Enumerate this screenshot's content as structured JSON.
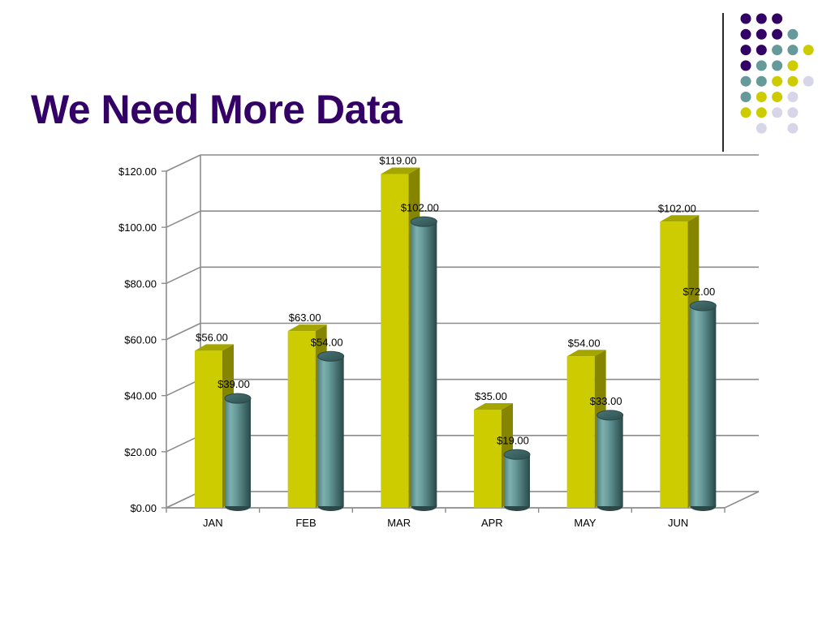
{
  "slide": {
    "title": "We Need More Data"
  },
  "theme": {
    "title_color": "#330066",
    "dot_colors": {
      "purple": "#330066",
      "teal": "#669999",
      "yellow": "#cccc00",
      "lavender": "#d6d6e8"
    }
  },
  "dot_pattern": [
    [
      "purple",
      "purple",
      "purple",
      null,
      null
    ],
    [
      "purple",
      "purple",
      "purple",
      "teal",
      null
    ],
    [
      "purple",
      "purple",
      "teal",
      "teal",
      "yellow"
    ],
    [
      "purple",
      "teal",
      "teal",
      "yellow",
      null
    ],
    [
      "teal",
      "teal",
      "yellow",
      "yellow",
      "lavender"
    ],
    [
      "teal",
      "yellow",
      "yellow",
      "lavender",
      null
    ],
    [
      "yellow",
      "yellow",
      "lavender",
      "lavender",
      null
    ],
    [
      null,
      "lavender",
      null,
      "lavender",
      null
    ]
  ],
  "chart_data": {
    "type": "bar",
    "style": "3d-clustered",
    "categories": [
      "JAN",
      "FEB",
      "MAR",
      "APR",
      "MAY",
      "JUN"
    ],
    "series": [
      {
        "values": [
          56,
          63,
          119,
          35,
          54,
          102
        ],
        "labels": [
          "$56.00",
          "$63.00",
          "$119.00",
          "$35.00",
          "$54.00",
          "$102.00"
        ],
        "color": "#cccc00",
        "shape": "box"
      },
      {
        "values": [
          39,
          54,
          102,
          19,
          33,
          72
        ],
        "labels": [
          "$39.00",
          "$54.00",
          "$102.00",
          "$19.00",
          "$33.00",
          "$72.00"
        ],
        "color": "#669999",
        "shape": "cylinder"
      }
    ],
    "ylim": [
      0,
      120
    ],
    "yticks": [
      0,
      20,
      40,
      60,
      80,
      100,
      120
    ],
    "ytick_labels": [
      "$0.00",
      "$20.00",
      "$40.00",
      "$60.00",
      "$80.00",
      "$100.00",
      "$120.00"
    ],
    "grid": true,
    "legend": "none",
    "title": "",
    "xlabel": "",
    "ylabel": ""
  }
}
